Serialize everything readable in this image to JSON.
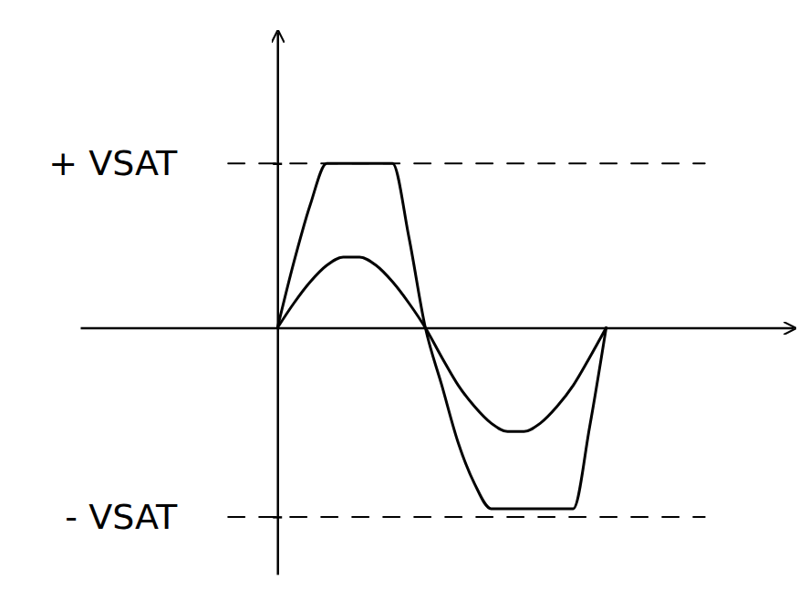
{
  "chart_data": {
    "type": "line",
    "x": [
      0,
      0.05,
      0.1,
      0.15,
      0.2,
      0.25,
      0.3,
      0.35,
      0.4,
      0.45,
      0.5,
      0.55,
      0.6,
      0.65,
      0.7,
      0.75,
      0.8,
      0.85,
      0.9,
      0.95,
      1.0
    ],
    "series": [
      {
        "color": "#000000",
        "values": [
          0,
          0.15,
          0.28,
          0.38,
          0.43,
          0.43,
          0.38,
          0.28,
          0.15,
          0,
          -0.18,
          -0.35,
          -0.48,
          -0.58,
          -0.63,
          -0.63,
          -0.58,
          -0.48,
          -0.35,
          -0.18,
          0
        ]
      },
      {
        "color": "#000000",
        "values": [
          0,
          0.4,
          0.75,
          1,
          1,
          1,
          1,
          1,
          0.55,
          0,
          -0.35,
          -0.7,
          -0.95,
          -1.1,
          -1.1,
          -1.1,
          -1.1,
          -1.1,
          -1.1,
          -0.6,
          0
        ]
      }
    ],
    "xlim": [
      -0.6,
      1.57
    ],
    "xticks": [],
    "ylim": [
      -1.5,
      1.8
    ],
    "yticks": [
      {
        "value": 1,
        "label": "+ VSAT"
      },
      {
        "value": -1.15,
        "label": "- VSAT"
      }
    ],
    "tick_labels": "y",
    "grid": true,
    "line_style": "solid"
  }
}
